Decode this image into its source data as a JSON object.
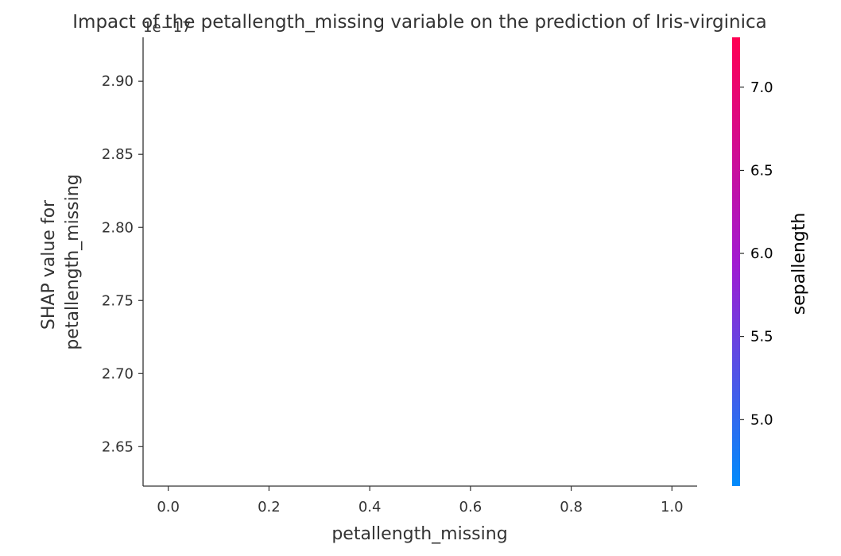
{
  "chart_data": {
    "type": "scatter",
    "title": "Impact of the petallength_missing variable on the prediction of Iris-virginica",
    "xlabel": "petallength_missing",
    "ylabel": "SHAP value for\npetallength_missing",
    "y_offset_label": "1e−17",
    "xlim": [
      -0.05,
      1.05
    ],
    "ylim": [
      2.623,
      2.93
    ],
    "x_ticks": [
      0.0,
      0.2,
      0.4,
      0.6,
      0.8,
      1.0
    ],
    "x_tick_labels": [
      "0.0",
      "0.2",
      "0.4",
      "0.6",
      "0.8",
      "1.0"
    ],
    "y_ticks": [
      2.65,
      2.7,
      2.75,
      2.8,
      2.85,
      2.9
    ],
    "y_tick_labels": [
      "2.65",
      "2.70",
      "2.75",
      "2.80",
      "2.85",
      "2.90"
    ],
    "points": [],
    "colorbar": {
      "label": "sepallength",
      "range": [
        4.6,
        7.3
      ],
      "ticks": [
        5.0,
        5.5,
        6.0,
        6.5,
        7.0
      ],
      "tick_labels": [
        "5.0",
        "5.5",
        "6.0",
        "6.5",
        "7.0"
      ],
      "color_low": "#008bfb",
      "color_high": "#ff0052"
    },
    "grid": false,
    "spines": "left-bottom"
  }
}
